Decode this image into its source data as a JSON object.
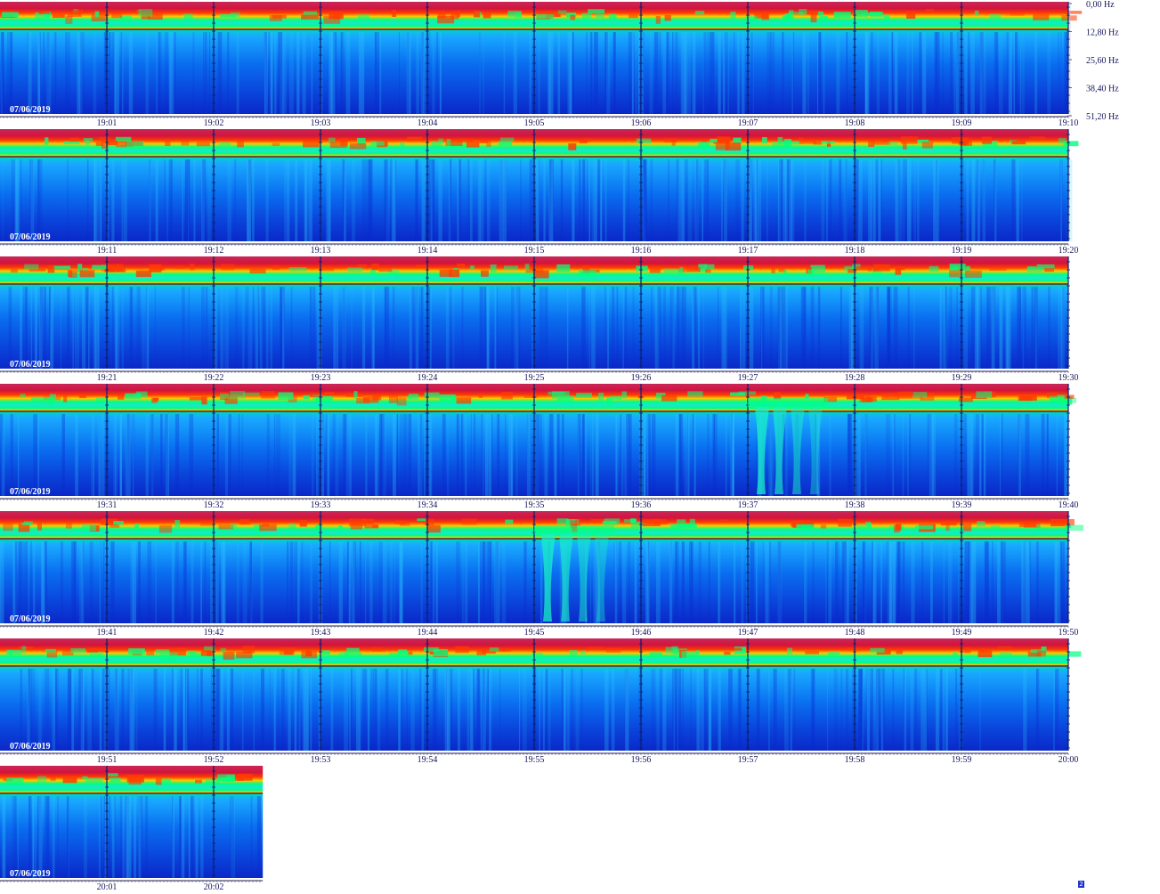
{
  "chart_data": {
    "type": "heatmap",
    "title": "",
    "date_label": "07/06/2019",
    "frequency_axis": {
      "tick_labels": [
        "0,00 Hz",
        "12,80 Hz",
        "25,60 Hz",
        "38,40 Hz",
        "51,20 Hz"
      ],
      "range_hz": [
        0,
        51.2
      ],
      "direction": "downward"
    },
    "colormap": [
      "#0a14b4",
      "#0a55e6",
      "#19aaff",
      "#00e6e6",
      "#00ff80",
      "#c8f000",
      "#ffc800",
      "#ff3c00",
      "#d2143c",
      "#c81e50"
    ],
    "rows": [
      {
        "start": "19:00",
        "time_labels": [
          "19:01",
          "19:02",
          "19:03",
          "19:04",
          "19:05",
          "19:06",
          "19:07",
          "19:08",
          "19:09",
          "19:10"
        ]
      },
      {
        "start": "19:10",
        "time_labels": [
          "19:11",
          "19:12",
          "19:13",
          "19:14",
          "19:15",
          "19:16",
          "19:17",
          "19:18",
          "19:19",
          "19:20"
        ]
      },
      {
        "start": "19:20",
        "time_labels": [
          "19:21",
          "19:22",
          "19:23",
          "19:24",
          "19:25",
          "19:26",
          "19:27",
          "19:28",
          "19:29",
          "19:30"
        ]
      },
      {
        "start": "19:30",
        "time_labels": [
          "19:31",
          "19:32",
          "19:33",
          "19:34",
          "19:35",
          "19:36",
          "19:37",
          "19:38",
          "19:39",
          "19:40"
        ]
      },
      {
        "start": "19:40",
        "time_labels": [
          "19:41",
          "19:42",
          "19:43",
          "19:44",
          "19:45",
          "19:46",
          "19:47",
          "19:48",
          "19:49",
          "19:50"
        ]
      },
      {
        "start": "19:50",
        "time_labels": [
          "19:51",
          "19:52",
          "19:53",
          "19:54",
          "19:55",
          "19:56",
          "19:57",
          "19:58",
          "19:59",
          "20:00"
        ]
      },
      {
        "start": "20:00",
        "time_labels": [
          "20:01",
          "20:02"
        ],
        "partial": true
      }
    ],
    "notable_events": [
      {
        "time": "19:37",
        "description": "deep plunge"
      },
      {
        "time": "19:45",
        "description": "deep plunge"
      }
    ]
  },
  "corner_mark": "2"
}
